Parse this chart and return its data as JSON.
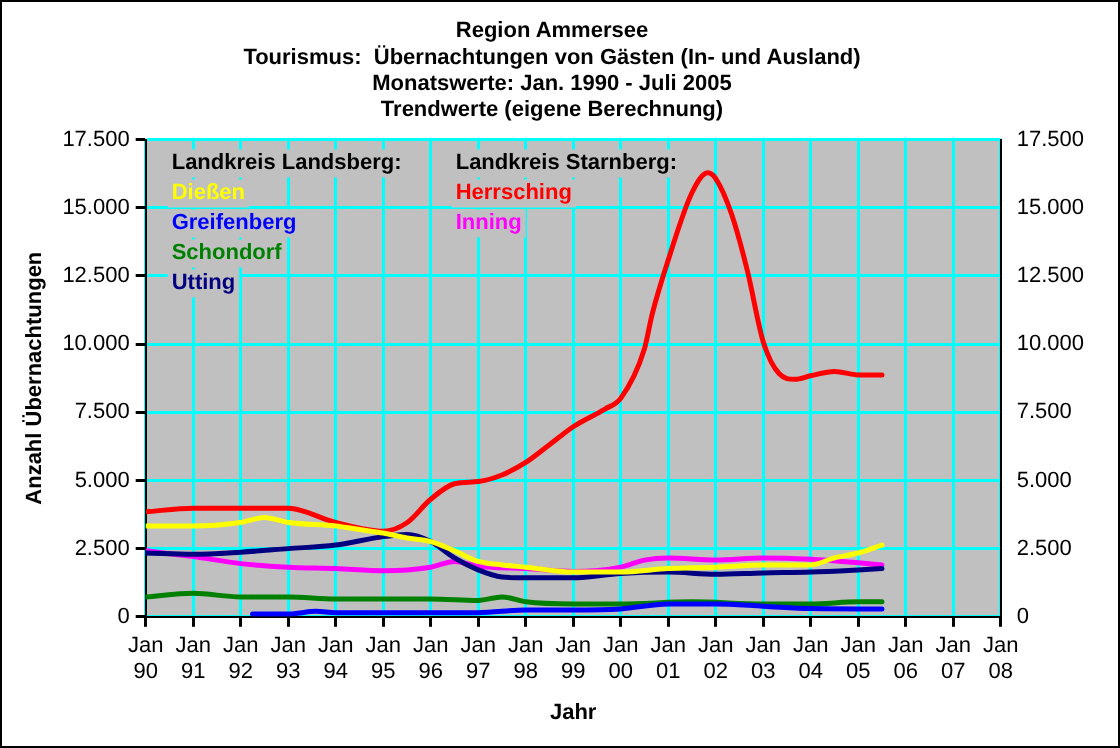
{
  "chart_data": {
    "type": "line",
    "title": "Region Ammersee",
    "subtitle": "Tourismus:  Übernachtungen von Gästen (In- und Ausland)\nMonatswerte: Jan. 1990 - Juli 2005\nTrendwerte (eigene Berechnung)",
    "xlabel": "Jahr",
    "ylabel": "Anzahl Übernachtungen",
    "annotations": [
      "Landkreis Landsberg:",
      "Landkreis Starnberg:"
    ],
    "legend": "top left",
    "grid": true,
    "marker": "none",
    "line_style": "solid",
    "xlim": [
      "1990-01",
      "2008-01"
    ],
    "xticks": [
      {
        "value": "1990-01",
        "label": "Jan 90"
      },
      {
        "value": "1991-01",
        "label": "Jan 91"
      },
      {
        "value": "1992-01",
        "label": "Jan 92"
      },
      {
        "value": "1993-01",
        "label": "Jan 93"
      },
      {
        "value": "1994-01",
        "label": "Jan 94"
      },
      {
        "value": "1995-01",
        "label": "Jan 95"
      },
      {
        "value": "1996-01",
        "label": "Jan 96"
      },
      {
        "value": "1997-01",
        "label": "Jan 97"
      },
      {
        "value": "1998-01",
        "label": "Jan 98"
      },
      {
        "value": "1999-01",
        "label": "Jan 99"
      },
      {
        "value": "2000-01",
        "label": "Jan 00"
      },
      {
        "value": "2001-01",
        "label": "Jan 01"
      },
      {
        "value": "2002-01",
        "label": "Jan 02"
      },
      {
        "value": "2003-01",
        "label": "Jan 03"
      },
      {
        "value": "2004-01",
        "label": "Jan 04"
      },
      {
        "value": "2005-01",
        "label": "Jan 05"
      },
      {
        "value": "2006-01",
        "label": "Jan 06"
      },
      {
        "value": "2007-01",
        "label": "Jan 07"
      },
      {
        "value": "2008-01",
        "label": "Jan 08"
      }
    ],
    "ylim": [
      0,
      17500
    ],
    "yticks": [
      0,
      {
        "value": 2500,
        "label": "2.500"
      },
      {
        "value": 5000,
        "label": "5.000"
      },
      {
        "value": 7500,
        "label": "7.500"
      },
      {
        "value": 10000,
        "label": "10.000"
      },
      {
        "value": 12500,
        "label": "12.500"
      },
      {
        "value": 15000,
        "label": "15.000"
      },
      {
        "value": 17500,
        "label": "17.500"
      }
    ],
    "y2lim": [
      0,
      17500
    ],
    "y2ticks": [
      0,
      {
        "value": 2500,
        "label": "2.500"
      },
      {
        "value": 5000,
        "label": "5.000"
      },
      {
        "value": 7500,
        "label": "7.500"
      },
      {
        "value": 10000,
        "label": "10.000"
      },
      {
        "value": 12500,
        "label": "12.500"
      },
      {
        "value": 15000,
        "label": "15.000"
      },
      {
        "value": 17500,
        "label": "17.500"
      }
    ],
    "series": [
      {
        "name": "Dießen",
        "color": "#ffff00",
        "x": [
          "1990-01",
          "1991-01",
          "1992-01",
          "1992-07",
          "1993-01",
          "1994-01",
          "1994-07",
          "1995-01",
          "1995-07",
          "1996-01",
          "1996-07",
          "1997-01",
          "1997-07",
          "1998-01",
          "1999-01",
          "2000-01",
          "2001-01",
          "2002-01",
          "2003-01",
          "2004-01",
          "2004-07",
          "2005-01",
          "2005-07"
        ],
        "values": [
          3330,
          3330,
          3460,
          3640,
          3460,
          3330,
          3200,
          3070,
          2890,
          2760,
          2420,
          2030,
          1900,
          1820,
          1640,
          1640,
          1770,
          1820,
          1900,
          1900,
          2160,
          2340,
          2630
        ]
      },
      {
        "name": "Greifenberg",
        "color": "#0000ff",
        "x": [
          "1992-04",
          "1993-01",
          "1993-08",
          "1994-01",
          "1995-01",
          "1996-01",
          "1997-01",
          "1998-01",
          "1999-01",
          "2000-01",
          "2001-01",
          "2002-01",
          "2003-01",
          "2004-01",
          "2005-01",
          "2005-07"
        ],
        "values": [
          100,
          100,
          200,
          150,
          150,
          150,
          150,
          250,
          250,
          290,
          470,
          470,
          390,
          300,
          290,
          290
        ]
      },
      {
        "name": "Schondorf",
        "color": "#008000",
        "x": [
          "1990-01",
          "1991-01",
          "1992-01",
          "1993-01",
          "1994-01",
          "1995-01",
          "1996-01",
          "1997-01",
          "1997-07",
          "1998-01",
          "1999-01",
          "2000-01",
          "2001-07",
          "2003-01",
          "2004-01",
          "2005-01",
          "2005-07"
        ],
        "values": [
          730,
          860,
          730,
          730,
          650,
          650,
          650,
          600,
          730,
          550,
          470,
          470,
          550,
          470,
          470,
          550,
          550
        ]
      },
      {
        "name": "Utting",
        "color": "#000080",
        "x": [
          "1990-01",
          "1991-01",
          "1992-01",
          "1993-01",
          "1994-01",
          "1995-01",
          "1995-07",
          "1996-01",
          "1996-07",
          "1997-01",
          "1997-07",
          "1998-01",
          "1999-01",
          "2000-01",
          "2001-01",
          "2002-01",
          "2003-01",
          "2004-01",
          "2005-01",
          "2005-07"
        ],
        "values": [
          2340,
          2290,
          2370,
          2500,
          2630,
          2940,
          3020,
          2760,
          2160,
          1720,
          1460,
          1430,
          1430,
          1590,
          1640,
          1560,
          1610,
          1640,
          1720,
          1770
        ]
      },
      {
        "name": "Herrsching",
        "color": "#ff0000",
        "x": [
          "1990-01",
          "1991-01",
          "1992-01",
          "1993-01",
          "1994-01",
          "1995-01",
          "1995-07",
          "1996-01",
          "1996-07",
          "1997-01",
          "1997-07",
          "1998-01",
          "1998-07",
          "1999-01",
          "1999-09",
          "2000-01",
          "2000-07",
          "2000-09",
          "2001-01",
          "2001-07",
          "2001-11",
          "2002-01",
          "2002-05",
          "2002-09",
          "2003-01",
          "2003-05",
          "2003-09",
          "2004-01",
          "2004-07",
          "2005-01",
          "2005-07"
        ],
        "values": [
          3850,
          3980,
          3980,
          3980,
          3460,
          3140,
          3450,
          4310,
          4880,
          4960,
          5200,
          5660,
          6310,
          6970,
          7620,
          8010,
          9830,
          11130,
          13080,
          15550,
          16280,
          16070,
          14770,
          12690,
          10090,
          8920,
          8710,
          8840,
          9000,
          8870,
          8870
        ]
      },
      {
        "name": "Inning",
        "color": "#ff00ff",
        "x": [
          "1990-01",
          "1991-01",
          "1992-01",
          "1993-01",
          "1994-01",
          "1995-01",
          "1996-01",
          "1996-07",
          "1997-01",
          "1998-01",
          "1999-01",
          "2000-01",
          "2000-07",
          "2001-01",
          "2002-01",
          "2003-01",
          "2004-01",
          "2005-01",
          "2005-07"
        ],
        "values": [
          2420,
          2210,
          1950,
          1820,
          1770,
          1690,
          1820,
          2030,
          1850,
          1770,
          1660,
          1820,
          2080,
          2160,
          2080,
          2160,
          2110,
          1980,
          1900
        ]
      }
    ]
  }
}
